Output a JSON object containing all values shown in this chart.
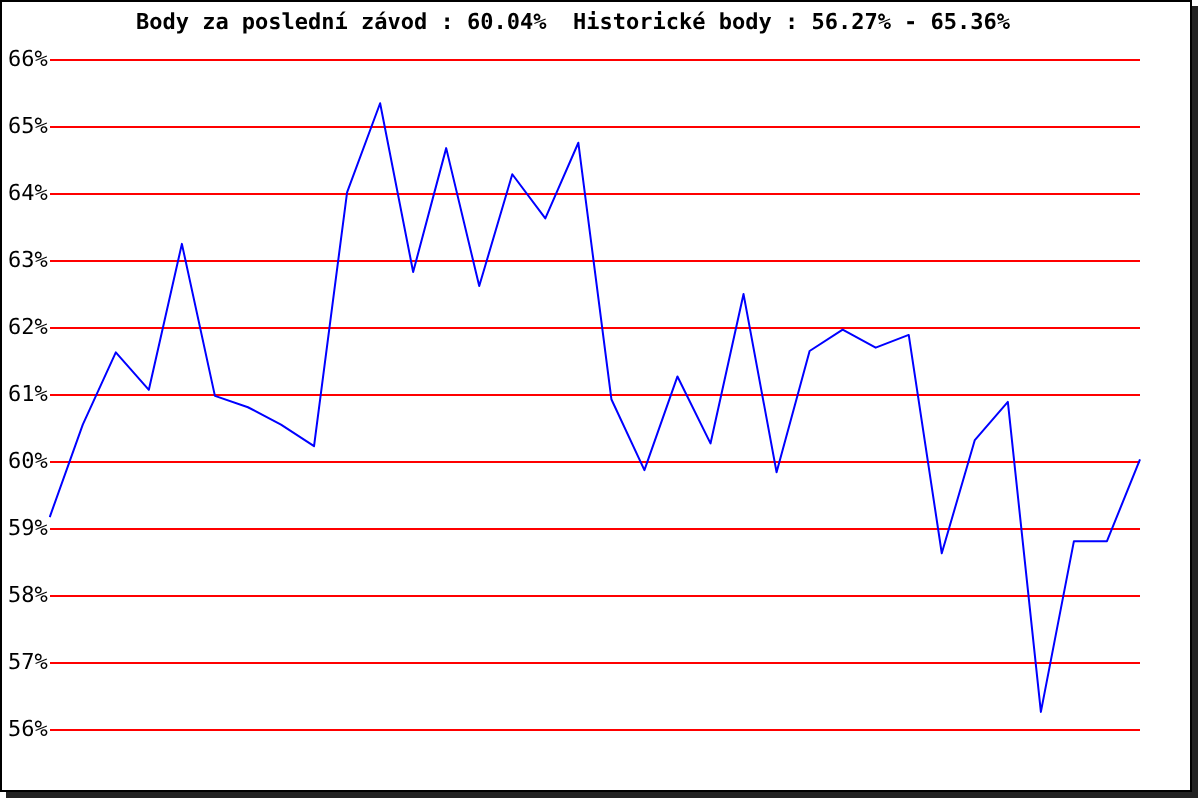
{
  "chart_data": {
    "type": "line",
    "title": "Body za poslední závod : 60.04%  Historické body : 56.27% - 65.36%",
    "categories": [
      null,
      null,
      null,
      null,
      null,
      null,
      null,
      null,
      null,
      null,
      null,
      null,
      null,
      null,
      null,
      null,
      null,
      null,
      null,
      null,
      null,
      null,
      null,
      null,
      null,
      null,
      null,
      null,
      null,
      null,
      null,
      null,
      null,
      null
    ],
    "series": [
      {
        "color": "#0000ff",
        "values": [
          59.18,
          60.56,
          61.64,
          61.08,
          63.26,
          60.99,
          60.82,
          60.56,
          60.24,
          64.03,
          65.36,
          62.84,
          64.69,
          62.63,
          64.3,
          63.64,
          64.77,
          60.94,
          59.88,
          61.28,
          60.28,
          62.51,
          59.85,
          61.66,
          61.98,
          61.71,
          61.9,
          58.64,
          60.33,
          60.9,
          56.27,
          58.82,
          58.82,
          60.04
        ]
      }
    ],
    "ylim": [
      56,
      66
    ],
    "yticks": [
      {
        "value": 56,
        "label": "56%"
      },
      {
        "value": 57,
        "label": "57%"
      },
      {
        "value": 58,
        "label": "58%"
      },
      {
        "value": 59,
        "label": "59%"
      },
      {
        "value": 60,
        "label": "60%"
      },
      {
        "value": 61,
        "label": "61%"
      },
      {
        "value": 62,
        "label": "62%"
      },
      {
        "value": 63,
        "label": "63%"
      },
      {
        "value": 64,
        "label": "64%"
      },
      {
        "value": 65,
        "label": "65%"
      },
      {
        "value": 66,
        "label": "66%"
      }
    ],
    "tick_labels": "y",
    "grid": "y",
    "marker": "none",
    "line_style": "solid"
  }
}
